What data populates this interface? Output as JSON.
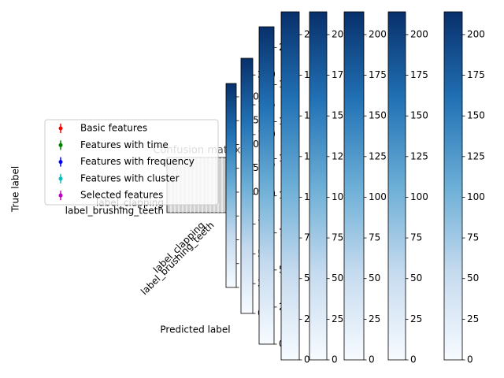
{
  "chart_data": [
    {
      "type": "confusion",
      "title": "Confusion matrix",
      "xlabel": "Predicted label",
      "ylabel": "True label",
      "categories": [
        "label_brushing_teeth",
        "label_clapping"
      ],
      "legend": "center left",
      "series": [
        {
          "name": "Basic features",
          "color": "#ff0000"
        },
        {
          "name": "Features with time",
          "color": "#008000"
        },
        {
          "name": "Features with frequency",
          "color": "#0000ff"
        },
        {
          "name": "Features with cluster",
          "color": "#00bfbf"
        },
        {
          "name": "Selected features",
          "color": "#bf00bf"
        }
      ]
    },
    {
      "type": "colorbar",
      "cmap": "Blues",
      "ylim": [
        0,
        214
      ],
      "yticks": [
        0,
        25,
        50,
        75,
        100,
        125,
        150,
        175,
        200
      ]
    },
    {
      "type": "colorbar",
      "cmap": "Blues",
      "ylim": [
        0,
        214
      ],
      "yticks": [
        0,
        25,
        50,
        75,
        100,
        125,
        150,
        175,
        200
      ]
    },
    {
      "type": "colorbar",
      "cmap": "Blues",
      "ylim": [
        0,
        214
      ],
      "yticks": [
        0,
        25,
        50,
        75,
        100,
        125,
        150,
        175,
        200
      ]
    },
    {
      "type": "colorbar",
      "cmap": "Blues",
      "ylim": [
        0,
        214
      ],
      "yticks": [
        0,
        25,
        50,
        75,
        100,
        125,
        150,
        175,
        200
      ]
    },
    {
      "type": "colorbar",
      "cmap": "Blues",
      "ylim": [
        0,
        214
      ],
      "yticks": [
        0,
        25,
        50,
        75,
        100,
        125,
        150,
        175,
        200
      ]
    },
    {
      "type": "colorbar",
      "cmap": "Blues",
      "ylim": [
        0,
        214
      ],
      "yticks": [
        0,
        25,
        50,
        75,
        100,
        125,
        150,
        175,
        200
      ]
    },
    {
      "type": "colorbar",
      "cmap": "Blues",
      "ylim": [
        0,
        214
      ],
      "yticks": [
        0,
        25,
        50,
        75,
        100,
        125,
        150,
        175,
        200
      ]
    },
    {
      "type": "colorbar",
      "cmap": "Blues",
      "ylim": [
        0,
        214
      ],
      "yticks": [
        0,
        25,
        50,
        75,
        100,
        125,
        150,
        175,
        200
      ]
    }
  ]
}
